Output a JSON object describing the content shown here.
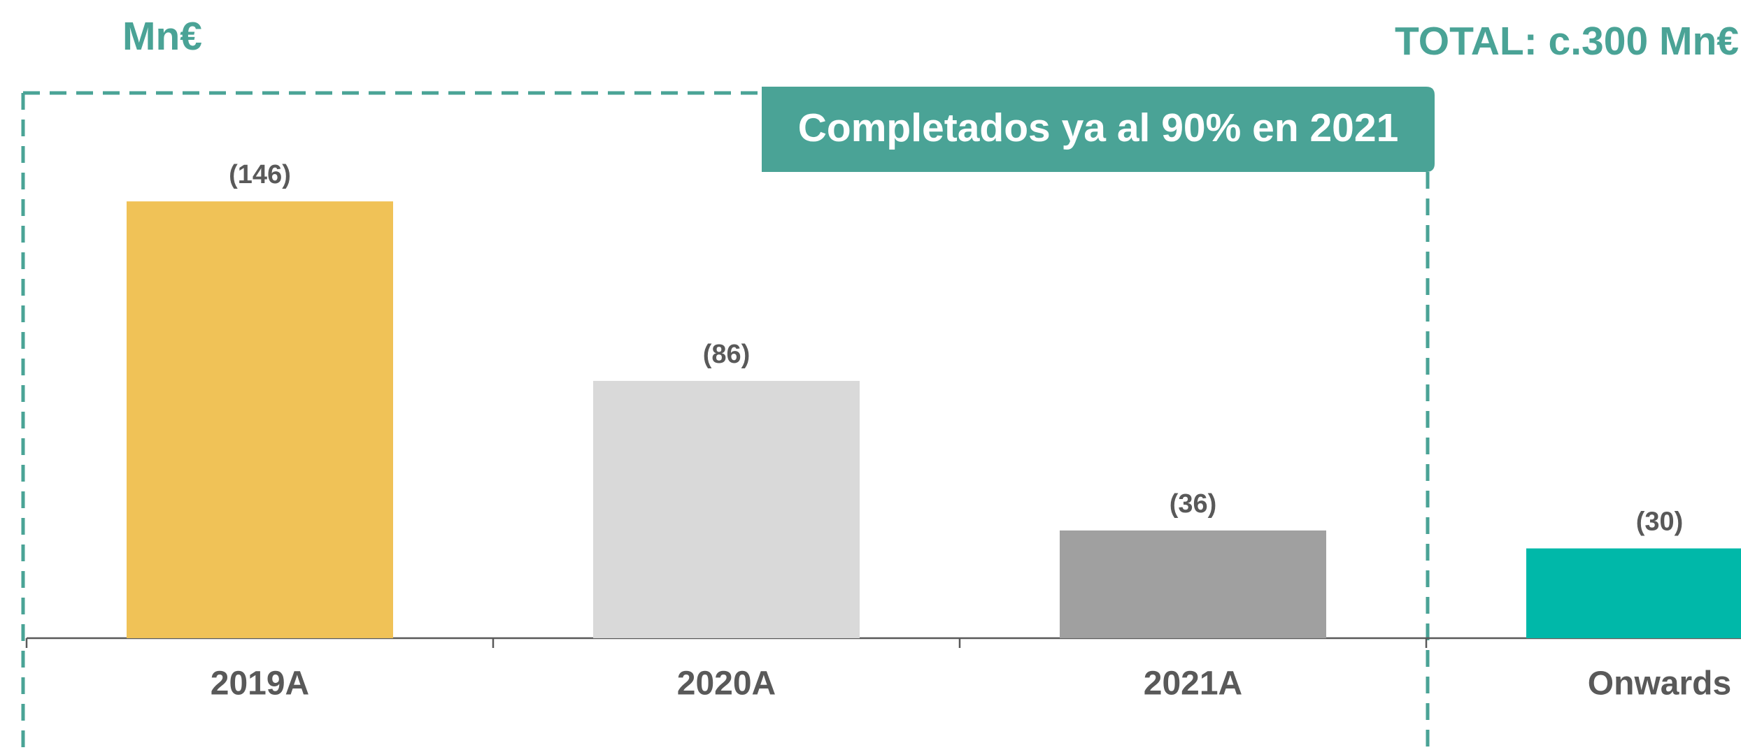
{
  "chart_data": {
    "type": "bar",
    "unit_label": "Mn€",
    "total_label": "TOTAL: c.300 Mn€",
    "annotation": "Completados ya al 90% en 2021",
    "categories": [
      "2019A",
      "2020A",
      "2021A",
      "Onwards"
    ],
    "values": [
      146,
      86,
      36,
      30
    ],
    "value_labels": [
      "(146)",
      "(86)",
      "(36)",
      "(30)"
    ],
    "colors": [
      "#f0c257",
      "#d9d9d9",
      "#a0a0a0",
      "#00b8a9"
    ]
  }
}
